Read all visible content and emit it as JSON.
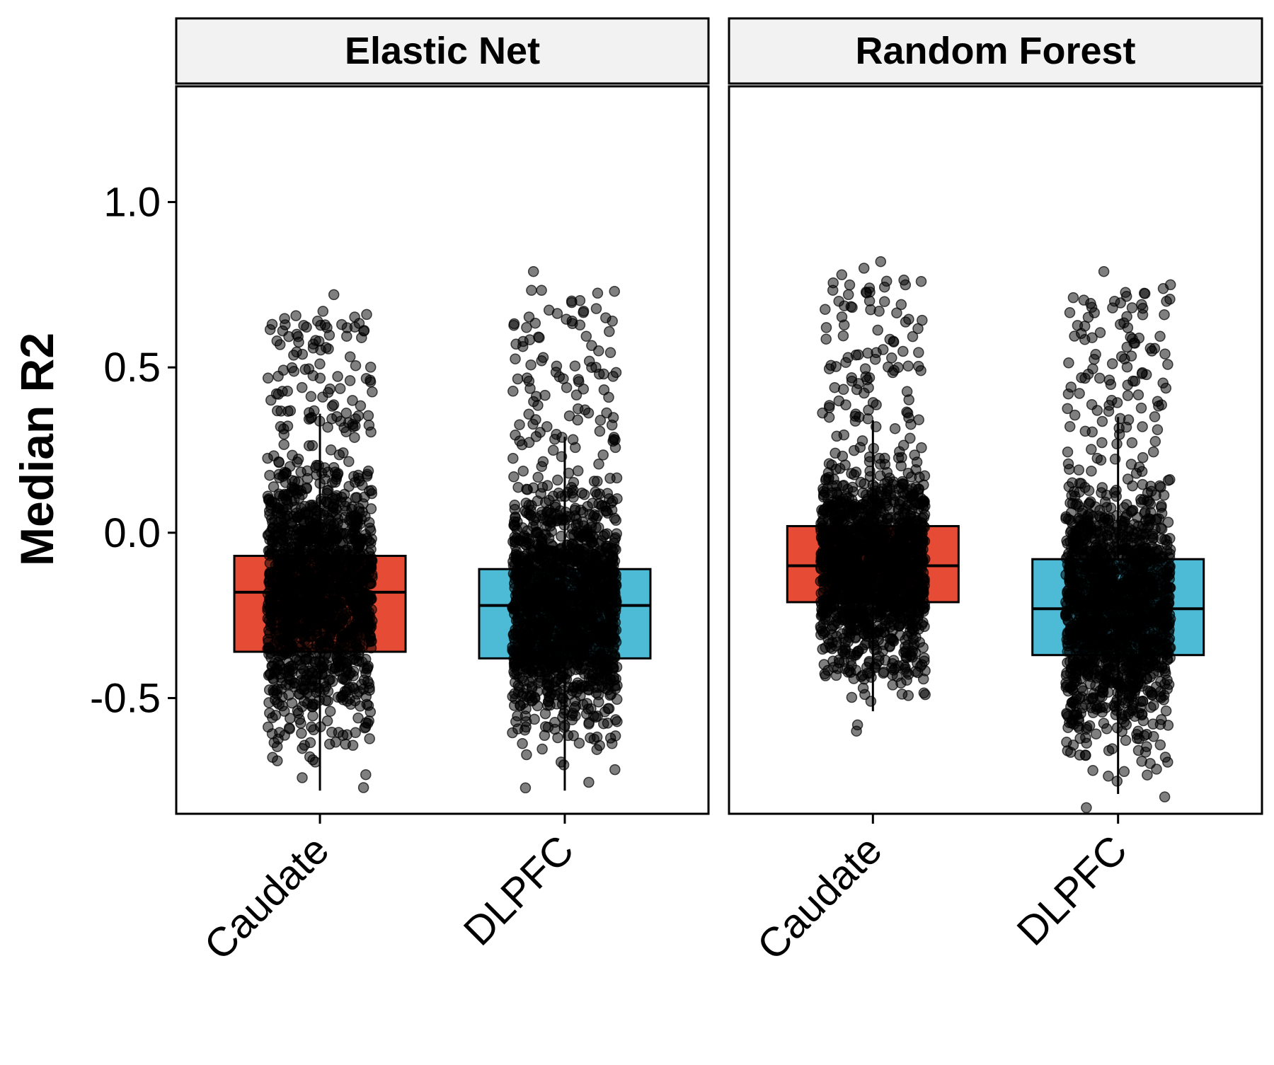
{
  "chart_data": {
    "type": "box",
    "ylabel": "Median R2",
    "xlabel": "",
    "ylim": [
      -0.85,
      1.35
    ],
    "yticks": [
      -0.5,
      0.0,
      0.5,
      1.0
    ],
    "ytick_labels": [
      "-0.5",
      "0.0",
      "0.5",
      "1.0"
    ],
    "grid": false,
    "legend": "none",
    "colors": {
      "Caudate": "#e64b35",
      "DLPFC": "#4dbbd5",
      "points": "#000000",
      "strip_fill": "#f2f2f2"
    },
    "categories": [
      "Caudate",
      "DLPFC"
    ],
    "panels": [
      {
        "title": "Elastic Net",
        "boxes": [
          {
            "category": "Caudate",
            "q1": -0.36,
            "median": -0.18,
            "q3": -0.07,
            "whisker_low": -0.78,
            "whisker_high": 0.36,
            "point_min": -0.85,
            "point_max": 0.72,
            "outliers": [
              0.72,
              0.66,
              0.64,
              0.63,
              0.62,
              0.61,
              0.58,
              0.56
            ]
          },
          {
            "category": "DLPFC",
            "q1": -0.38,
            "median": -0.22,
            "q3": -0.11,
            "whisker_low": -0.78,
            "whisker_high": 0.29,
            "point_min": -0.85,
            "point_max": 0.79,
            "outliers": [
              0.79,
              0.64,
              0.59,
              0.53,
              0.5,
              0.48
            ]
          }
        ]
      },
      {
        "title": "Random Forest",
        "boxes": [
          {
            "category": "Caudate",
            "q1": -0.21,
            "median": -0.1,
            "q3": 0.02,
            "whisker_low": -0.54,
            "whisker_high": 0.34,
            "point_min": -0.6,
            "point_max": 0.82,
            "outliers": [
              0.82,
              0.8,
              0.78,
              0.76,
              0.74,
              0.72,
              0.7,
              -0.6
            ]
          },
          {
            "category": "DLPFC",
            "q1": -0.37,
            "median": -0.23,
            "q3": -0.08,
            "whisker_low": -0.79,
            "whisker_high": 0.35,
            "point_min": -0.85,
            "point_max": 0.79,
            "outliers": [
              0.79,
              0.75,
              0.7,
              0.68,
              0.63,
              0.62
            ]
          }
        ]
      }
    ]
  }
}
